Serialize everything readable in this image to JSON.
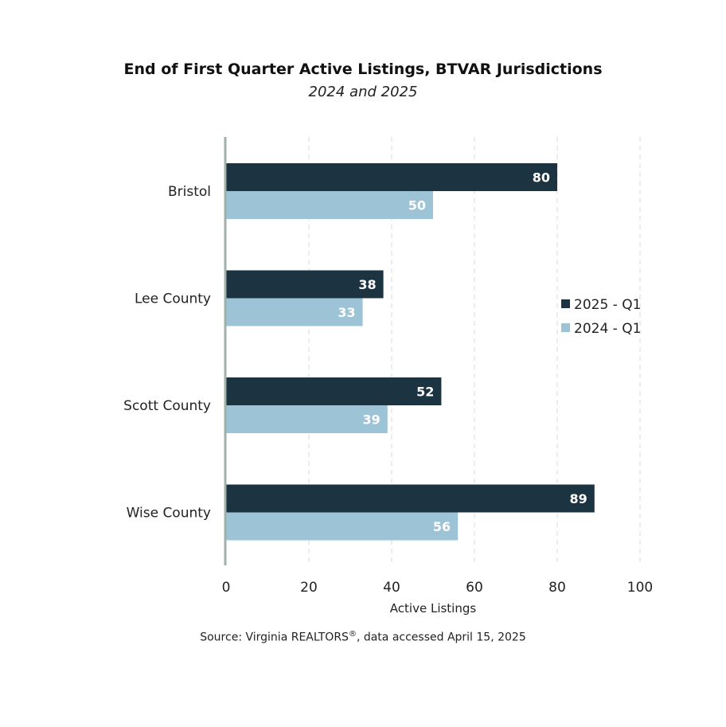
{
  "chart_data": {
    "type": "bar",
    "orientation": "horizontal",
    "title": "End of First Quarter Active Listings, BTVAR Jurisdictions",
    "subtitle": "2024 and 2025",
    "categories": [
      "Bristol",
      "Lee County",
      "Scott County",
      "Wise County"
    ],
    "series": [
      {
        "name": "2025 - Q1",
        "color": "#1c3341",
        "values": [
          80,
          38,
          52,
          89
        ]
      },
      {
        "name": "2024 - Q1",
        "color": "#9dc4d6",
        "values": [
          50,
          33,
          39,
          56
        ]
      }
    ],
    "xlabel": "Active Listings",
    "ylabel": "",
    "xlim": [
      0,
      100
    ],
    "xticks": [
      "0",
      "20",
      "40",
      "60",
      "80",
      "100"
    ],
    "grid": "vertical dashed",
    "legend_position": "right",
    "source_text": "Source: Virginia REALTORS",
    "source_mark": "®",
    "source_suffix": ", data accessed April 15, 2025"
  }
}
